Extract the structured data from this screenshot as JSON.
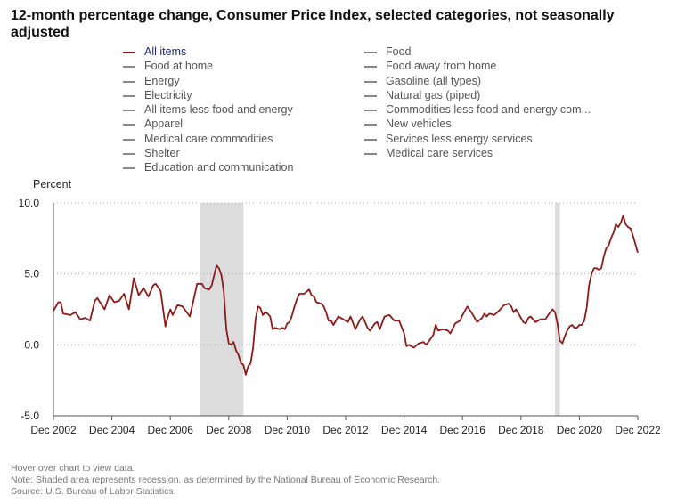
{
  "title": "12-month percentage change, Consumer Price Index, selected categories, not seasonally adjusted",
  "legend": [
    {
      "label": "All items",
      "color": "#8b1a1a",
      "active": true
    },
    {
      "label": "Food"
    },
    {
      "label": "Food at home"
    },
    {
      "label": "Food away from home"
    },
    {
      "label": "Energy"
    },
    {
      "label": "Gasoline (all types)"
    },
    {
      "label": "Electricity"
    },
    {
      "label": "Natural gas (piped)"
    },
    {
      "label": "All items less food and energy"
    },
    {
      "label": "Commodities less food and energy com..."
    },
    {
      "label": "Apparel"
    },
    {
      "label": "New vehicles"
    },
    {
      "label": "Medical care commodities"
    },
    {
      "label": "Services less energy services"
    },
    {
      "label": "Shelter"
    },
    {
      "label": "Medical care services"
    },
    {
      "label": "Education and communication"
    }
  ],
  "footer": {
    "line1": "Hover over chart to view data.",
    "line2": "Note: Shaded area represents recession, as determined by the National Bureau of Economic Research.",
    "line3": "Source: U.S. Bureau of Labor Statistics."
  },
  "chart_data": {
    "type": "line",
    "title": "12-month percentage change, Consumer Price Index, selected categories, not seasonally adjusted",
    "ylabel": "Percent",
    "xlabel": "",
    "ylim": [
      -5.0,
      10.0
    ],
    "yticks": [
      "10.0",
      "5.0",
      "0.0",
      "-5.0"
    ],
    "ytick_values": [
      10,
      5,
      0,
      -5
    ],
    "xlim": [
      "2002-12",
      "2022-12"
    ],
    "xticks": [
      "Dec 2002",
      "Dec 2004",
      "Dec 2006",
      "Dec 2008",
      "Dec 2010",
      "Dec 2012",
      "Dec 2014",
      "Dec 2016",
      "Dec 2018",
      "Dec 2020",
      "Dec 2022"
    ],
    "xtick_dates": [
      "2002-12",
      "2004-12",
      "2006-12",
      "2008-12",
      "2010-12",
      "2012-12",
      "2014-12",
      "2016-12",
      "2018-12",
      "2020-12",
      "2022-12"
    ],
    "grid": "horizontal dotted",
    "legend_position": "top",
    "recessions": [
      {
        "start": "2007-12",
        "end": "2009-06"
      },
      {
        "start": "2020-02",
        "end": "2020-04"
      }
    ],
    "series": [
      {
        "name": "All items",
        "color": "#8b1a1a",
        "points": [
          [
            "2002-12",
            2.4
          ],
          [
            "2003-02",
            3.0
          ],
          [
            "2003-03",
            3.0
          ],
          [
            "2003-04",
            2.2
          ],
          [
            "2003-07",
            2.1
          ],
          [
            "2003-09",
            2.3
          ],
          [
            "2003-11",
            1.8
          ],
          [
            "2004-01",
            1.9
          ],
          [
            "2004-03",
            1.7
          ],
          [
            "2004-05",
            3.1
          ],
          [
            "2004-06",
            3.3
          ],
          [
            "2004-09",
            2.5
          ],
          [
            "2004-11",
            3.5
          ],
          [
            "2005-01",
            3.0
          ],
          [
            "2005-03",
            3.1
          ],
          [
            "2005-05",
            3.6
          ],
          [
            "2005-07",
            2.5
          ],
          [
            "2005-08",
            3.6
          ],
          [
            "2005-09",
            4.7
          ],
          [
            "2005-11",
            3.5
          ],
          [
            "2006-01",
            4.0
          ],
          [
            "2006-03",
            3.4
          ],
          [
            "2006-05",
            4.2
          ],
          [
            "2006-06",
            4.3
          ],
          [
            "2006-08",
            3.8
          ],
          [
            "2006-10",
            1.3
          ],
          [
            "2006-11",
            2.0
          ],
          [
            "2006-12",
            2.5
          ],
          [
            "2007-01",
            2.1
          ],
          [
            "2007-03",
            2.8
          ],
          [
            "2007-05",
            2.7
          ],
          [
            "2007-08",
            2.0
          ],
          [
            "2007-10",
            3.5
          ],
          [
            "2007-11",
            4.3
          ],
          [
            "2008-01",
            4.3
          ],
          [
            "2008-02",
            4.0
          ],
          [
            "2008-04",
            3.9
          ],
          [
            "2008-05",
            4.2
          ],
          [
            "2008-07",
            5.6
          ],
          [
            "2008-08",
            5.4
          ],
          [
            "2008-09",
            4.9
          ],
          [
            "2008-10",
            3.7
          ],
          [
            "2008-11",
            1.1
          ],
          [
            "2008-12",
            0.1
          ],
          [
            "2009-01",
            0.0
          ],
          [
            "2009-02",
            0.2
          ],
          [
            "2009-03",
            -0.4
          ],
          [
            "2009-04",
            -0.7
          ],
          [
            "2009-05",
            -1.3
          ],
          [
            "2009-06",
            -1.4
          ],
          [
            "2009-07",
            -2.1
          ],
          [
            "2009-08",
            -1.5
          ],
          [
            "2009-09",
            -1.3
          ],
          [
            "2009-10",
            -0.2
          ],
          [
            "2009-11",
            1.8
          ],
          [
            "2009-12",
            2.7
          ],
          [
            "2010-01",
            2.6
          ],
          [
            "2010-02",
            2.1
          ],
          [
            "2010-03",
            2.3
          ],
          [
            "2010-04",
            2.2
          ],
          [
            "2010-05",
            2.0
          ],
          [
            "2010-06",
            1.1
          ],
          [
            "2010-07",
            1.2
          ],
          [
            "2010-09",
            1.1
          ],
          [
            "2010-10",
            1.2
          ],
          [
            "2010-11",
            1.1
          ],
          [
            "2010-12",
            1.5
          ],
          [
            "2011-01",
            1.6
          ],
          [
            "2011-02",
            2.1
          ],
          [
            "2011-03",
            2.7
          ],
          [
            "2011-04",
            3.2
          ],
          [
            "2011-05",
            3.6
          ],
          [
            "2011-07",
            3.6
          ],
          [
            "2011-09",
            3.9
          ],
          [
            "2011-10",
            3.5
          ],
          [
            "2011-11",
            3.4
          ],
          [
            "2011-12",
            3.0
          ],
          [
            "2012-02",
            2.9
          ],
          [
            "2012-03",
            2.7
          ],
          [
            "2012-04",
            2.3
          ],
          [
            "2012-05",
            1.7
          ],
          [
            "2012-06",
            1.7
          ],
          [
            "2012-07",
            1.4
          ],
          [
            "2012-09",
            2.0
          ],
          [
            "2012-11",
            1.8
          ],
          [
            "2012-12",
            1.7
          ],
          [
            "2013-01",
            1.6
          ],
          [
            "2013-02",
            2.0
          ],
          [
            "2013-04",
            1.1
          ],
          [
            "2013-06",
            1.8
          ],
          [
            "2013-07",
            2.0
          ],
          [
            "2013-09",
            1.2
          ],
          [
            "2013-10",
            1.0
          ],
          [
            "2013-12",
            1.5
          ],
          [
            "2014-01",
            1.6
          ],
          [
            "2014-02",
            1.1
          ],
          [
            "2014-04",
            2.0
          ],
          [
            "2014-06",
            2.1
          ],
          [
            "2014-08",
            1.7
          ],
          [
            "2014-10",
            1.7
          ],
          [
            "2014-12",
            0.8
          ],
          [
            "2015-01",
            -0.1
          ],
          [
            "2015-02",
            0.0
          ],
          [
            "2015-04",
            -0.2
          ],
          [
            "2015-06",
            0.1
          ],
          [
            "2015-08",
            0.2
          ],
          [
            "2015-09",
            0.0
          ],
          [
            "2015-10",
            0.2
          ],
          [
            "2015-12",
            0.7
          ],
          [
            "2016-01",
            1.4
          ],
          [
            "2016-02",
            1.0
          ],
          [
            "2016-04",
            1.1
          ],
          [
            "2016-06",
            1.0
          ],
          [
            "2016-07",
            0.8
          ],
          [
            "2016-09",
            1.5
          ],
          [
            "2016-11",
            1.7
          ],
          [
            "2016-12",
            2.1
          ],
          [
            "2017-02",
            2.7
          ],
          [
            "2017-04",
            2.2
          ],
          [
            "2017-06",
            1.6
          ],
          [
            "2017-08",
            1.9
          ],
          [
            "2017-09",
            2.2
          ],
          [
            "2017-10",
            2.0
          ],
          [
            "2017-11",
            2.2
          ],
          [
            "2018-01",
            2.1
          ],
          [
            "2018-03",
            2.4
          ],
          [
            "2018-05",
            2.8
          ],
          [
            "2018-07",
            2.9
          ],
          [
            "2018-08",
            2.7
          ],
          [
            "2018-09",
            2.3
          ],
          [
            "2018-10",
            2.5
          ],
          [
            "2018-12",
            1.9
          ],
          [
            "2019-01",
            1.6
          ],
          [
            "2019-02",
            1.5
          ],
          [
            "2019-03",
            1.9
          ],
          [
            "2019-04",
            2.0
          ],
          [
            "2019-06",
            1.6
          ],
          [
            "2019-08",
            1.8
          ],
          [
            "2019-10",
            1.8
          ],
          [
            "2019-12",
            2.3
          ],
          [
            "2020-01",
            2.5
          ],
          [
            "2020-02",
            2.3
          ],
          [
            "2020-03",
            1.5
          ],
          [
            "2020-04",
            0.3
          ],
          [
            "2020-05",
            0.1
          ],
          [
            "2020-06",
            0.6
          ],
          [
            "2020-07",
            1.0
          ],
          [
            "2020-08",
            1.3
          ],
          [
            "2020-09",
            1.4
          ],
          [
            "2020-10",
            1.2
          ],
          [
            "2020-11",
            1.2
          ],
          [
            "2020-12",
            1.4
          ],
          [
            "2021-01",
            1.4
          ],
          [
            "2021-02",
            1.7
          ],
          [
            "2021-03",
            2.6
          ],
          [
            "2021-04",
            4.2
          ],
          [
            "2021-05",
            5.0
          ],
          [
            "2021-06",
            5.4
          ],
          [
            "2021-07",
            5.4
          ],
          [
            "2021-08",
            5.3
          ],
          [
            "2021-09",
            5.4
          ],
          [
            "2021-10",
            6.2
          ],
          [
            "2021-11",
            6.8
          ],
          [
            "2021-12",
            7.0
          ],
          [
            "2022-01",
            7.5
          ],
          [
            "2022-02",
            7.9
          ],
          [
            "2022-03",
            8.5
          ],
          [
            "2022-04",
            8.3
          ],
          [
            "2022-05",
            8.6
          ],
          [
            "2022-06",
            9.1
          ],
          [
            "2022-07",
            8.5
          ],
          [
            "2022-08",
            8.3
          ],
          [
            "2022-09",
            8.2
          ],
          [
            "2022-10",
            7.7
          ],
          [
            "2022-11",
            7.1
          ],
          [
            "2022-12",
            6.5
          ]
        ]
      }
    ]
  }
}
